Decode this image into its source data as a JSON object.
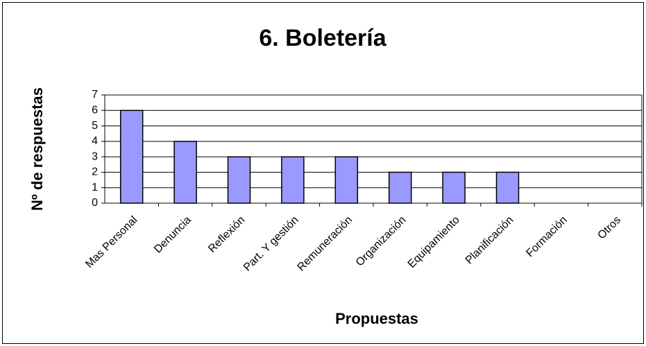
{
  "chart_data": {
    "type": "bar",
    "title": "6. Boletería",
    "x_label": "Propuestas",
    "y_label": "Nº de respuestas",
    "categories": [
      "Mas Personal",
      "Denuncia",
      "Reflexión",
      "Part. Y gestión",
      "Remuneración",
      "Organización",
      "Equipamiento",
      "Planificación",
      "Formación",
      "Otros"
    ],
    "values": [
      6,
      4,
      3,
      3,
      3,
      2,
      2,
      2,
      0,
      0
    ],
    "color": "#9999ff",
    "ylim": [
      0,
      7
    ],
    "yticks": [
      0,
      1,
      2,
      3,
      4,
      5,
      6,
      7
    ],
    "grid": true
  }
}
